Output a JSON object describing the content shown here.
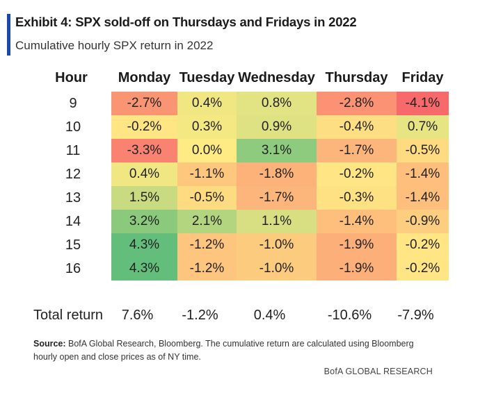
{
  "header": {
    "title": "Exhibit 4: SPX sold-off on Thursdays and Fridays in 2022",
    "subtitle": "Cumulative hourly SPX return in 2022"
  },
  "chart_data": {
    "type": "heatmap",
    "corner_label": "Hour",
    "columns": [
      "Monday",
      "Tuesday",
      "Wednesday",
      "Thursday",
      "Friday"
    ],
    "rows": [
      "9",
      "10",
      "11",
      "12",
      "13",
      "14",
      "15",
      "16"
    ],
    "values": [
      [
        -2.7,
        0.4,
        0.8,
        -2.8,
        -4.1
      ],
      [
        -0.2,
        0.3,
        0.9,
        -0.4,
        0.7
      ],
      [
        -3.3,
        0.0,
        3.1,
        -1.7,
        -0.5
      ],
      [
        0.4,
        -1.1,
        -1.8,
        -0.2,
        -1.4
      ],
      [
        1.5,
        -0.5,
        -1.7,
        -0.3,
        -1.4
      ],
      [
        3.2,
        2.1,
        1.1,
        -1.4,
        -0.9
      ],
      [
        4.3,
        -1.2,
        -1.0,
        -1.9,
        -0.2
      ],
      [
        4.3,
        -1.2,
        -1.0,
        -1.9,
        -0.2
      ]
    ],
    "value_labels": [
      [
        "-2.7%",
        "0.4%",
        "0.8%",
        "-2.8%",
        "-4.1%"
      ],
      [
        "-0.2%",
        "0.3%",
        "0.9%",
        "-0.4%",
        "0.7%"
      ],
      [
        "-3.3%",
        "0.0%",
        "3.1%",
        "-1.7%",
        "-0.5%"
      ],
      [
        "0.4%",
        "-1.1%",
        "-1.8%",
        "-0.2%",
        "-1.4%"
      ],
      [
        "1.5%",
        "-0.5%",
        "-1.7%",
        "-0.3%",
        "-1.4%"
      ],
      [
        "3.2%",
        "2.1%",
        "1.1%",
        "-1.4%",
        "-0.9%"
      ],
      [
        "4.3%",
        "-1.2%",
        "-1.0%",
        "-1.9%",
        "-0.2%"
      ],
      [
        "4.3%",
        "-1.2%",
        "-1.0%",
        "-1.9%",
        "-0.2%"
      ]
    ],
    "color_scale": {
      "low": "#f8696b",
      "mid": "#ffeb84",
      "high": "#63be7b"
    },
    "totals_label": "Total return",
    "totals": [
      "7.6%",
      "-1.2%",
      "0.4%",
      "-10.6%",
      "-7.9%"
    ]
  },
  "footer": {
    "source_label": "Source:",
    "source_text": " BofA Global Research, Bloomberg. The cumulative return are calculated using Bloomberg hourly open and close prices as of NY time.",
    "brand": "BofA GLOBAL RESEARCH"
  }
}
